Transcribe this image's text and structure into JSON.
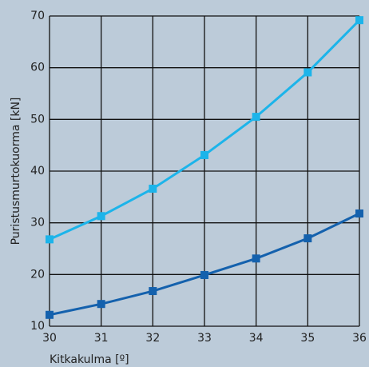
{
  "chart_data": {
    "type": "line",
    "x_label": "Kitkakulma [º]",
    "y_label": "Puristusmurtokuorma [kN]",
    "x": [
      30,
      31,
      32,
      33,
      34,
      35,
      36
    ],
    "series": [
      {
        "color": "#1cb4ea",
        "values": [
          26.8,
          31.3,
          36.6,
          43.1,
          50.5,
          59.1,
          69.2
        ]
      },
      {
        "color": "#1461ad",
        "values": [
          12.2,
          14.3,
          16.8,
          19.9,
          23.1,
          27.0,
          31.8
        ]
      }
    ],
    "xlim": [
      30,
      36
    ],
    "xticks": [
      30,
      31,
      32,
      33,
      34,
      35,
      36
    ],
    "ylim": [
      10,
      70
    ],
    "yticks": [
      10,
      20,
      30,
      40,
      50,
      60,
      70
    ],
    "grid": true
  }
}
